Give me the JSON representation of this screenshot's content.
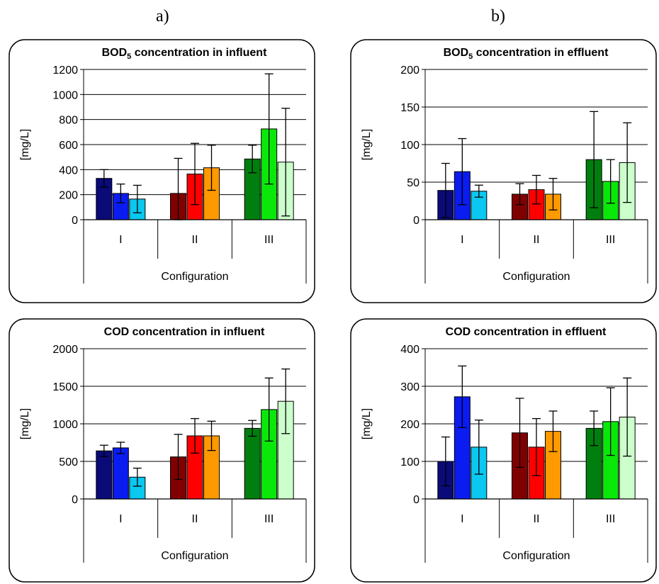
{
  "panel_labels": {
    "a": "a)",
    "b": "b)"
  },
  "colors": [
    "#0a0a78",
    "#0a1cf0",
    "#0ac8f0",
    "#800000",
    "#ff0000",
    "#ff9900",
    "#007f0e",
    "#0ae80a",
    "#ccffcc"
  ],
  "chart_data": [
    {
      "type": "bar",
      "title": "BOD",
      "title_sub": "5",
      "title_rest": " concentration in influent",
      "ylabel": "[mg/L]",
      "xlabel": "Configuration",
      "ylim": [
        0,
        1200
      ],
      "yticks": [
        0,
        200,
        400,
        600,
        800,
        1000,
        1200
      ],
      "yticks_labels": [
        "0",
        "200",
        "400",
        "600",
        "800",
        "1000",
        "1200"
      ],
      "categories": [
        "I",
        "II",
        "III"
      ],
      "groups": [
        {
          "values": [
            330,
            210,
            165
          ],
          "err": [
            70,
            75,
            110
          ]
        },
        {
          "values": [
            210,
            365,
            415
          ],
          "err": [
            280,
            245,
            180
          ]
        },
        {
          "values": [
            485,
            725,
            460
          ],
          "err": [
            110,
            440,
            430
          ]
        }
      ]
    },
    {
      "type": "bar",
      "title": "BOD",
      "title_sub": "5",
      "title_rest": " concentration in effluent",
      "ylabel": "[mg/L]",
      "xlabel": "Configuration",
      "ylim": [
        0,
        200
      ],
      "yticks": [
        0,
        50,
        100,
        150,
        200
      ],
      "yticks_labels": [
        "0",
        "50",
        "100",
        "150",
        "200"
      ],
      "categories": [
        "I",
        "II",
        "III"
      ],
      "groups": [
        {
          "values": [
            39,
            64,
            38
          ],
          "err": [
            36,
            44,
            8
          ]
        },
        {
          "values": [
            34,
            40,
            34
          ],
          "err": [
            14,
            19,
            21
          ]
        },
        {
          "values": [
            80,
            51,
            76
          ],
          "err": [
            64,
            29,
            53
          ]
        }
      ]
    },
    {
      "type": "bar",
      "title": "COD concentration in influent",
      "title_sub": "",
      "title_rest": "",
      "ylabel": "[mg/L]",
      "xlabel": "Configuration",
      "ylim": [
        0,
        2000
      ],
      "yticks": [
        0,
        500,
        1000,
        1500,
        2000
      ],
      "yticks_labels": [
        "0",
        "500",
        "1000",
        "1500",
        "2000"
      ],
      "categories": [
        "I",
        "II",
        "III"
      ],
      "groups": [
        {
          "values": [
            640,
            680,
            290
          ],
          "err": [
            75,
            75,
            120
          ]
        },
        {
          "values": [
            560,
            840,
            840
          ],
          "err": [
            300,
            230,
            195
          ]
        },
        {
          "values": [
            940,
            1190,
            1300
          ],
          "err": [
            105,
            420,
            430
          ]
        }
      ]
    },
    {
      "type": "bar",
      "title": "COD concentration in effluent",
      "title_sub": "",
      "title_rest": "",
      "ylabel": "[mg/L]",
      "xlabel": "Configuration",
      "ylim": [
        0,
        400
      ],
      "yticks": [
        0,
        100,
        200,
        300,
        400
      ],
      "yticks_labels": [
        "0",
        "100",
        "200",
        "300",
        "400"
      ],
      "categories": [
        "I",
        "II",
        "III"
      ],
      "groups": [
        {
          "values": [
            100,
            272,
            138
          ],
          "err": [
            65,
            82,
            72
          ]
        },
        {
          "values": [
            176,
            138,
            180
          ],
          "err": [
            92,
            76,
            54
          ]
        },
        {
          "values": [
            188,
            206,
            218
          ],
          "err": [
            46,
            90,
            104
          ]
        }
      ]
    }
  ]
}
